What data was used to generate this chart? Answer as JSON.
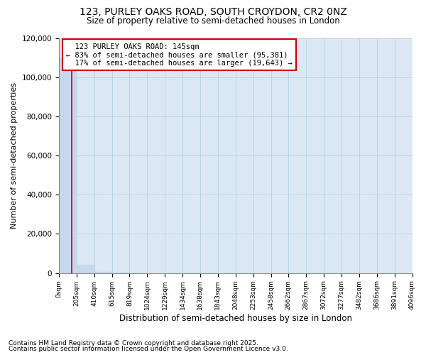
{
  "title": "123, PURLEY OAKS ROAD, SOUTH CROYDON, CR2 0NZ",
  "subtitle": "Size of property relative to semi-detached houses in London",
  "xlabel": "Distribution of semi-detached houses by size in London",
  "ylabel": "Number of semi-detached properties",
  "property_size": 145,
  "property_label": "123 PURLEY OAKS ROAD: 145sqm",
  "pct_smaller": 83,
  "pct_larger": 17,
  "n_smaller": 95381,
  "n_larger": 19643,
  "annotation_box_color": "#cc0000",
  "bar_color": "#c5d8ed",
  "property_line_color": "#cc0000",
  "bin_edges": [
    0,
    205,
    410,
    615,
    819,
    1024,
    1229,
    1434,
    1638,
    1843,
    2048,
    2253,
    2458,
    2662,
    2867,
    3072,
    3277,
    3482,
    3686,
    3891,
    4096
  ],
  "counts": [
    110000,
    4200,
    400,
    80,
    30,
    15,
    8,
    5,
    3,
    2,
    1,
    1,
    1,
    1,
    0,
    0,
    0,
    0,
    0,
    0
  ],
  "footnote1": "Contains HM Land Registry data © Crown copyright and database right 2025.",
  "footnote2": "Contains public sector information licensed under the Open Government Licence v3.0.",
  "ylim_max": 120000,
  "yticks": [
    0,
    20000,
    40000,
    60000,
    80000,
    100000,
    120000
  ],
  "background_color": "#ffffff",
  "plot_bg_color": "#dce9f5",
  "grid_color": "#b8cfe0"
}
